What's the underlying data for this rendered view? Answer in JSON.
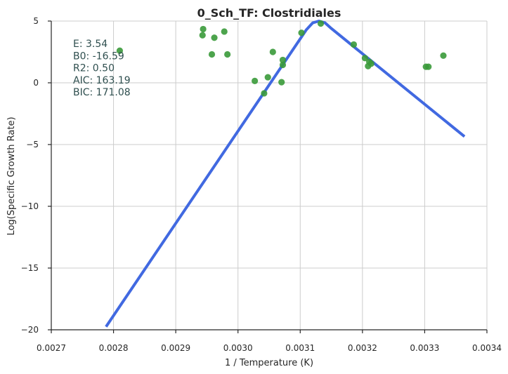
{
  "chart_data": {
    "type": "scatter",
    "title": "0_Sch_TF: Clostridiales",
    "xlabel": "1 / Temperature (K)",
    "ylabel": "Log(Specific Growth Rate)",
    "xlim": [
      0.0027,
      0.0034
    ],
    "ylim": [
      -20,
      5
    ],
    "xticks": [
      0.0027,
      0.0028,
      0.0029,
      0.003,
      0.0031,
      0.0032,
      0.0033,
      0.0034
    ],
    "xtick_labels": [
      "0.0027",
      "0.0028",
      "0.0029",
      "0.0030",
      "0.0031",
      "0.0032",
      "0.0033",
      "0.0034"
    ],
    "yticks": [
      5,
      0,
      -5,
      -10,
      -15,
      -20
    ],
    "ytick_labels": [
      "5",
      "0",
      "−5",
      "−10",
      "−15",
      "−20"
    ],
    "grid": true,
    "annotations": [
      "E:  3.54",
      "B0:  -16.59",
      "R2:  0.50",
      "AIC: 163.19",
      "BIC: 171.08"
    ],
    "points": [
      {
        "x": 0.00281,
        "y": 2.6
      },
      {
        "x": 0.002944,
        "y": 4.35
      },
      {
        "x": 0.002943,
        "y": 3.85
      },
      {
        "x": 0.002962,
        "y": 3.65
      },
      {
        "x": 0.002978,
        "y": 4.15
      },
      {
        "x": 0.002958,
        "y": 2.3
      },
      {
        "x": 0.002983,
        "y": 2.3
      },
      {
        "x": 0.003027,
        "y": 0.15
      },
      {
        "x": 0.003042,
        "y": -0.85
      },
      {
        "x": 0.003048,
        "y": 0.45
      },
      {
        "x": 0.003056,
        "y": 2.5
      },
      {
        "x": 0.00307,
        "y": 0.05
      },
      {
        "x": 0.003072,
        "y": 1.85
      },
      {
        "x": 0.003072,
        "y": 1.45
      },
      {
        "x": 0.003102,
        "y": 4.05
      },
      {
        "x": 0.003133,
        "y": 4.8
      },
      {
        "x": 0.003186,
        "y": 3.1
      },
      {
        "x": 0.003204,
        "y": 2.0
      },
      {
        "x": 0.003209,
        "y": 1.35
      },
      {
        "x": 0.003211,
        "y": 1.7
      },
      {
        "x": 0.003214,
        "y": 1.55
      },
      {
        "x": 0.003302,
        "y": 1.3
      },
      {
        "x": 0.003306,
        "y": 1.3
      },
      {
        "x": 0.00333,
        "y": 2.2
      }
    ],
    "fit_line": [
      {
        "x": 0.002788,
        "y": -19.75
      },
      {
        "x": 0.00311,
        "y": 4.3
      },
      {
        "x": 0.00312,
        "y": 4.85
      },
      {
        "x": 0.00313,
        "y": 5.0
      },
      {
        "x": 0.00314,
        "y": 4.85
      },
      {
        "x": 0.00315,
        "y": 4.4
      },
      {
        "x": 0.003364,
        "y": -4.35
      }
    ],
    "colors": {
      "points": "#3a9a3a",
      "fit": "#4169e1",
      "annotation": "#2f4f4f"
    }
  }
}
